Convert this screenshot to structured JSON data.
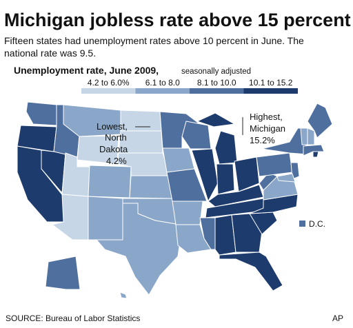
{
  "header": {
    "title": "Michigan jobless rate above 15 percent",
    "subtitle_lines": [
      "Fifteen states had unemployment rates above 10 percent in June. The",
      "national rate was 9.5."
    ]
  },
  "legend": {
    "title": "Unemployment rate, June 2009,",
    "note": "seasonally adjusted",
    "classes": [
      {
        "label": "4.2 to 6.0%",
        "color": "#c6d6e6"
      },
      {
        "label": "6.1 to 8.0",
        "color": "#8aa6c8"
      },
      {
        "label": "8.1 to 10.0",
        "color": "#4f6f9f"
      },
      {
        "label": "10.1 to 15.2",
        "color": "#1d3b6c"
      }
    ]
  },
  "annotations": {
    "lowest": [
      "Lowest,",
      "North",
      "Dakota",
      "4.2%"
    ],
    "highest": [
      "Highest,",
      "Michigan",
      "15.2%"
    ],
    "dc": "D.C."
  },
  "footer": {
    "source": "SOURCE: Bureau of Labor Statistics",
    "credit": "AP"
  }
}
